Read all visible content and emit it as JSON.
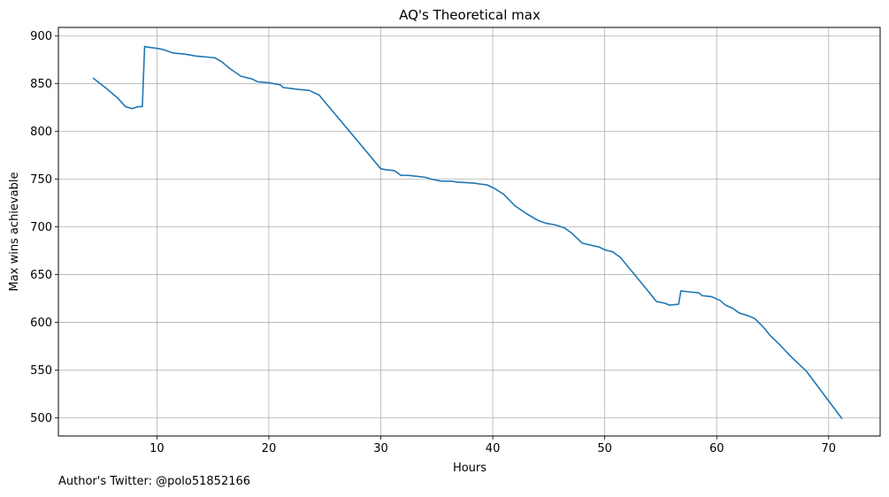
{
  "chart_data": {
    "type": "line",
    "title": "AQ's Theoretical max",
    "xlabel": "Hours",
    "ylabel": "Max wins achievable",
    "xlim": [
      1.2,
      74.6
    ],
    "ylim": [
      481,
      909
    ],
    "xticks": [
      10,
      20,
      30,
      40,
      50,
      60,
      70
    ],
    "yticks": [
      500,
      550,
      600,
      650,
      700,
      750,
      800,
      850,
      900
    ],
    "grid": true,
    "color": "#1f77b4",
    "series": [
      {
        "x": [
          4.3,
          5.5,
          6.5,
          7.2,
          7.8,
          8.3,
          8.7,
          8.9,
          9.4,
          10.0,
          10.5,
          11.0,
          11.5,
          12.5,
          13.5,
          14.5,
          15.2,
          15.8,
          16.5,
          17.5,
          18.5,
          19.0,
          20.0,
          21.0,
          21.3,
          22.0,
          22.7,
          23.6,
          24.5,
          25.0,
          30.0,
          30.4,
          31.2,
          31.8,
          32.5,
          34.0,
          34.5,
          35.4,
          36.3,
          36.8,
          38.2,
          38.8,
          39.5,
          40.2,
          41.0,
          42.0,
          43.0,
          44.0,
          44.7,
          45.6,
          46.4,
          47.0,
          48.0,
          49.5,
          50.0,
          50.7,
          51.4,
          54.0,
          54.6,
          55.4,
          55.8,
          56.6,
          56.8,
          57.5,
          58.4,
          58.7,
          59.5,
          60.3,
          60.8,
          61.4,
          62.0,
          62.8,
          63.4,
          64.1,
          64.8,
          65.6,
          66.4,
          67.0,
          68.0,
          71.2
        ],
        "y": [
          856,
          845,
          835,
          826,
          824,
          826,
          826,
          889,
          888,
          887,
          886,
          884,
          882,
          881,
          879,
          878,
          877,
          873,
          866,
          858,
          855,
          852,
          851,
          849,
          846,
          845,
          844,
          843,
          838,
          831,
          761,
          760,
          759,
          754,
          754,
          752,
          750,
          748,
          748,
          747,
          746,
          745,
          744,
          740,
          734,
          722,
          714,
          707,
          704,
          702,
          699,
          694,
          683,
          679,
          676,
          674,
          668,
          631,
          622,
          620,
          618,
          619,
          633,
          632,
          631,
          628,
          627,
          623,
          618,
          615,
          610,
          607,
          604,
          596,
          586,
          577,
          567,
          560,
          549,
          499
        ]
      }
    ]
  },
  "footer": {
    "credit": "Author's Twitter: @polo51852166"
  }
}
